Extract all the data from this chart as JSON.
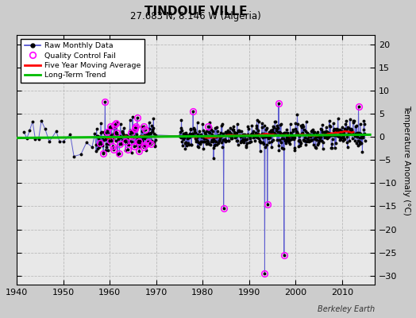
{
  "title": "TINDOUF VILLE",
  "subtitle": "27.683 N, 8.146 W (Algeria)",
  "ylabel": "Temperature Anomaly (°C)",
  "watermark": "Berkeley Earth",
  "xlim": [
    1940,
    2017
  ],
  "ylim": [
    -32,
    22
  ],
  "yticks": [
    -30,
    -25,
    -20,
    -15,
    -10,
    -5,
    0,
    5,
    10,
    15,
    20
  ],
  "xticks": [
    1940,
    1950,
    1960,
    1970,
    1980,
    1990,
    2000,
    2010
  ],
  "bg_color": "#e8e8e8",
  "raw_line_color": "#4444cc",
  "raw_dot_color": "#000000",
  "qc_color": "magenta",
  "ma_color": "red",
  "trend_color": "#00bb00",
  "seed": 42
}
